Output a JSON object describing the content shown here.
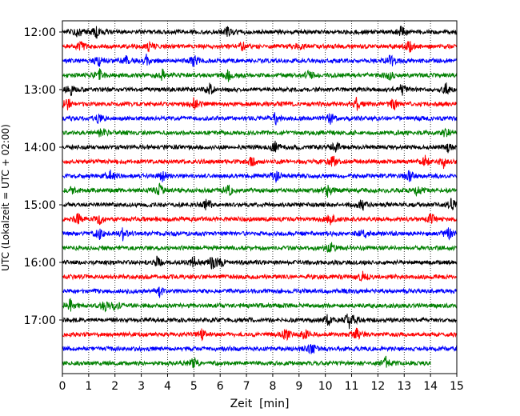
{
  "chart_data": {
    "type": "line",
    "xlabel": "Zeit  [min]",
    "ylabel": "UTC (Lokalzeit = UTC + 02:00)",
    "xlim": [
      0,
      15
    ],
    "x_ticks": [
      "0",
      "1",
      "2",
      "3",
      "4",
      "5",
      "6",
      "7",
      "8",
      "9",
      "10",
      "11",
      "12",
      "13",
      "14",
      "15"
    ],
    "y_ticks": [
      "12:00",
      "13:00",
      "14:00",
      "15:00",
      "16:00",
      "17:00"
    ],
    "grid": "vertical dotted lines at each minute",
    "trace_colors": [
      "#000000",
      "#ff0000",
      "#0000ff",
      "#008000"
    ],
    "last_trace_end_min": 14,
    "traces": [
      {
        "start": "12:00",
        "color": "#000000",
        "events_min": [
          0.6,
          1.3,
          6.3,
          12.9
        ]
      },
      {
        "start": "12:15",
        "color": "#ff0000",
        "events_min": [
          0.7,
          3.3,
          6.8,
          9.0,
          13.2
        ]
      },
      {
        "start": "12:30",
        "color": "#0000ff",
        "events_min": [
          1.4,
          2.4,
          3.2,
          5.0,
          12.5
        ]
      },
      {
        "start": "12:45",
        "color": "#008000",
        "events_min": [
          1.4,
          3.8,
          6.3,
          9.4,
          12.4
        ]
      },
      {
        "start": "13:00",
        "color": "#000000",
        "events_min": [
          0.3,
          5.6,
          12.9,
          14.6
        ]
      },
      {
        "start": "13:15",
        "color": "#ff0000",
        "events_min": [
          0.2,
          5.0,
          11.2,
          12.6
        ]
      },
      {
        "start": "13:30",
        "color": "#0000ff",
        "events_min": [
          1.4,
          8.1,
          10.2
        ]
      },
      {
        "start": "13:45",
        "color": "#008000",
        "events_min": [
          1.5,
          14.6
        ]
      },
      {
        "start": "14:00",
        "color": "#000000",
        "events_min": [
          8.1,
          10.4,
          14.7
        ]
      },
      {
        "start": "14:15",
        "color": "#ff0000",
        "events_min": [
          7.2,
          10.3,
          13.8,
          14.5
        ]
      },
      {
        "start": "14:30",
        "color": "#0000ff",
        "events_min": [
          1.8,
          3.8,
          8.1,
          13.2
        ]
      },
      {
        "start": "14:45",
        "color": "#008000",
        "events_min": [
          0.3,
          3.7,
          6.3,
          10.1,
          13.5
        ]
      },
      {
        "start": "15:00",
        "color": "#000000",
        "events_min": [
          5.5,
          11.4,
          14.8
        ]
      },
      {
        "start": "15:15",
        "color": "#ff0000",
        "events_min": [
          0.6,
          1.4,
          10.2,
          14.0
        ]
      },
      {
        "start": "15:30",
        "color": "#0000ff",
        "events_min": [
          1.4,
          2.3,
          11.5,
          14.7
        ]
      },
      {
        "start": "15:45",
        "color": "#008000",
        "events_min": [
          10.2
        ]
      },
      {
        "start": "16:00",
        "color": "#000000",
        "events_min": [
          3.6,
          5.0,
          5.7,
          6.0
        ]
      },
      {
        "start": "16:15",
        "color": "#ff0000",
        "events_min": [
          11.4
        ]
      },
      {
        "start": "16:30",
        "color": "#0000ff",
        "events_min": [
          3.7
        ]
      },
      {
        "start": "16:45",
        "color": "#008000",
        "events_min": [
          0.3,
          1.6,
          2.0
        ]
      },
      {
        "start": "17:00",
        "color": "#000000",
        "events_min": [
          10.1,
          10.9,
          11.0
        ]
      },
      {
        "start": "17:15",
        "color": "#ff0000",
        "events_min": [
          5.3,
          8.5,
          9.2,
          11.2
        ]
      },
      {
        "start": "17:30",
        "color": "#0000ff",
        "events_min": [
          9.5
        ]
      },
      {
        "start": "17:45",
        "color": "#008000",
        "events_min": [
          5.0,
          12.3
        ]
      }
    ]
  }
}
